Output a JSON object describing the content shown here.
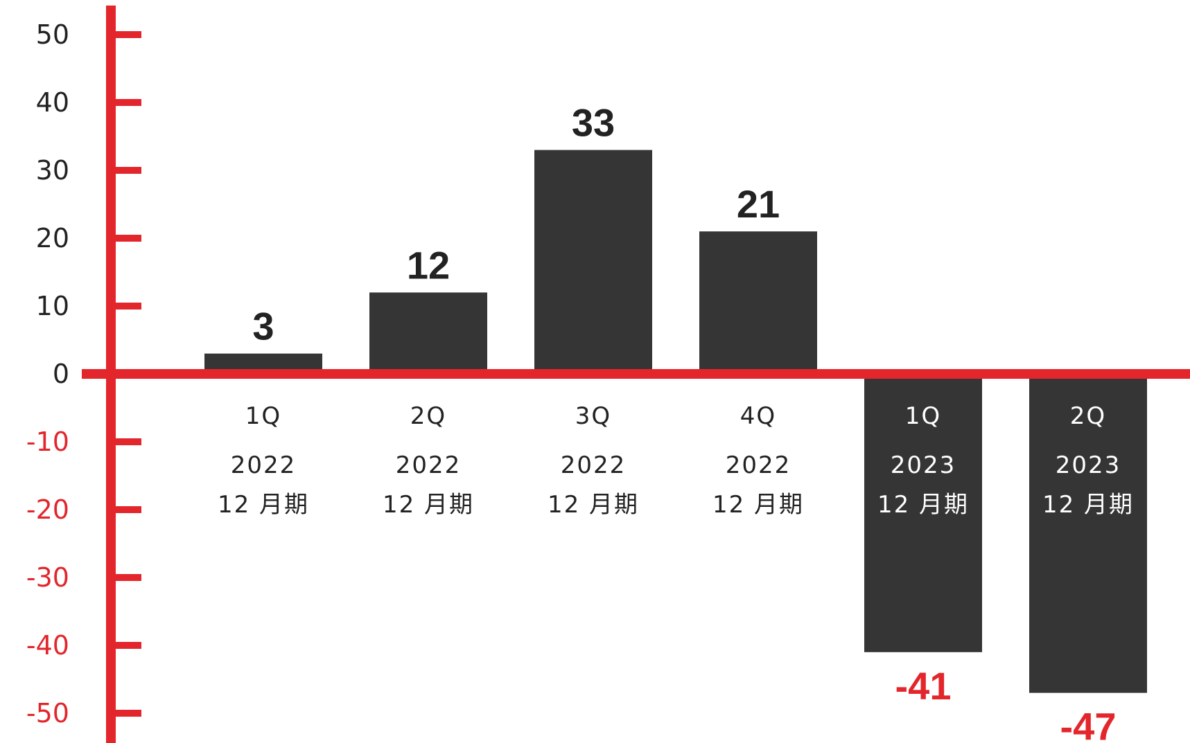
{
  "colors": {
    "axis": "#e3262c",
    "bar": "#353535",
    "text": "#222222",
    "negative_text": "#e3262c",
    "label_on_bar": "#ffffff"
  },
  "chart_data": {
    "type": "bar",
    "title": "",
    "xlabel": "",
    "ylabel": "",
    "ylim": [
      -50,
      50
    ],
    "yticks": [
      "50",
      "40",
      "30",
      "20",
      "10",
      "0",
      "-10",
      "-20",
      "-30",
      "-40",
      "-50"
    ],
    "grid": false,
    "categories": [
      {
        "quarter": "1Q",
        "year": "2022",
        "period": "12 月期"
      },
      {
        "quarter": "2Q",
        "year": "2022",
        "period": "12 月期"
      },
      {
        "quarter": "3Q",
        "year": "2022",
        "period": "12 月期"
      },
      {
        "quarter": "4Q",
        "year": "2022",
        "period": "12 月期"
      },
      {
        "quarter": "1Q",
        "year": "2023",
        "period": "12 月期"
      },
      {
        "quarter": "2Q",
        "year": "2023",
        "period": "12 月期"
      }
    ],
    "values": [
      3,
      12,
      33,
      21,
      -41,
      -47
    ],
    "data_labels": [
      "3",
      "12",
      "33",
      "21",
      "-41",
      "-47"
    ]
  }
}
